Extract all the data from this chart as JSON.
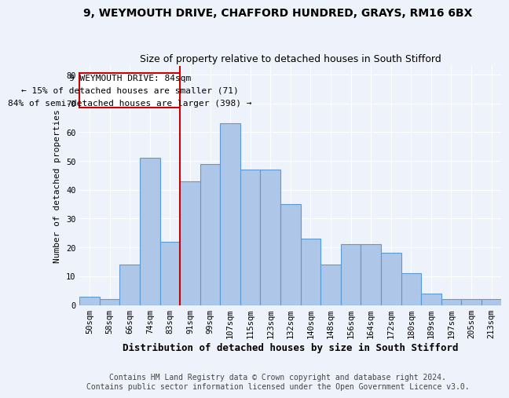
{
  "title_line1": "9, WEYMOUTH DRIVE, CHAFFORD HUNDRED, GRAYS, RM16 6BX",
  "title_line2": "Size of property relative to detached houses in South Stifford",
  "xlabel": "Distribution of detached houses by size in South Stifford",
  "ylabel": "Number of detached properties",
  "categories": [
    "50sqm",
    "58sqm",
    "66sqm",
    "74sqm",
    "83sqm",
    "91sqm",
    "99sqm",
    "107sqm",
    "115sqm",
    "123sqm",
    "132sqm",
    "140sqm",
    "148sqm",
    "156sqm",
    "164sqm",
    "172sqm",
    "180sqm",
    "189sqm",
    "197sqm",
    "205sqm",
    "213sqm"
  ],
  "values": [
    3,
    2,
    14,
    51,
    22,
    43,
    49,
    63,
    47,
    47,
    35,
    23,
    14,
    21,
    21,
    18,
    11,
    4,
    2,
    2,
    2
  ],
  "bar_color": "#aec6e8",
  "bar_edge_color": "#5b9bd5",
  "highlight_index": 4,
  "highlight_line_color": "#cc0000",
  "annotation_box_color": "#cc0000",
  "annotation_text_line1": "9 WEYMOUTH DRIVE: 84sqm",
  "annotation_text_line2": "← 15% of detached houses are smaller (71)",
  "annotation_text_line3": "84% of semi-detached houses are larger (398) →",
  "ylim": [
    0,
    83
  ],
  "yticks": [
    0,
    10,
    20,
    30,
    40,
    50,
    60,
    70,
    80
  ],
  "footer_line1": "Contains HM Land Registry data © Crown copyright and database right 2024.",
  "footer_line2": "Contains public sector information licensed under the Open Government Licence v3.0.",
  "background_color": "#eef2fa",
  "grid_color": "#ffffff",
  "title1_fontsize": 10,
  "title2_fontsize": 9,
  "xlabel_fontsize": 9,
  "ylabel_fontsize": 8,
  "tick_fontsize": 7.5,
  "footer_fontsize": 7,
  "annotation_fontsize": 8
}
